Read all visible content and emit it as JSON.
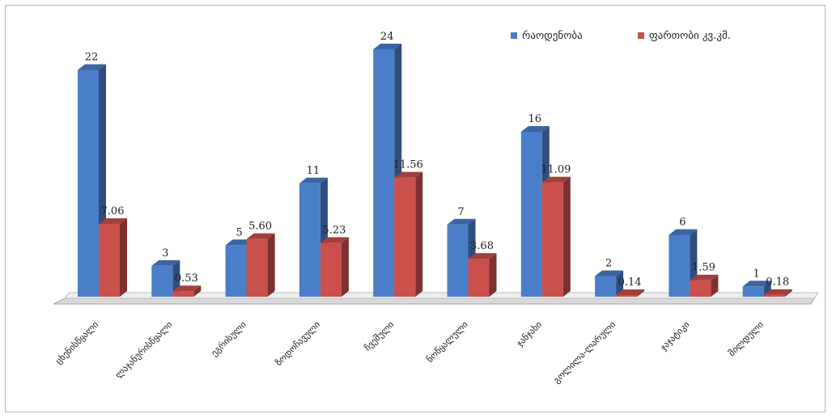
{
  "chart_data": {
    "type": "bar",
    "categories": [
      "ცხენისწყალი",
      "ლაჯანურისწყალი",
      "ეგრისული",
      "ზოდოჩავული",
      "ჩვეშული",
      "ნოწყალული",
      "ჯანჯახი",
      "გოლილა-ლარული",
      "ჯაჯატიკი",
      "შილდული"
    ],
    "series": [
      {
        "name": "რაოდენობა",
        "color": "#4a7ec9",
        "values": [
          22,
          3,
          5,
          11,
          24,
          7,
          16,
          2,
          6,
          1
        ],
        "labels": [
          "22",
          "3",
          "5",
          "11",
          "24",
          "7",
          "16",
          "2",
          "6",
          "1"
        ]
      },
      {
        "name": "ფართობი კვ.კმ.",
        "color": "#c9504b",
        "values": [
          7.06,
          0.53,
          5.6,
          5.23,
          11.56,
          3.68,
          11.09,
          0.14,
          1.59,
          0.18
        ],
        "labels": [
          "7.06",
          "0.53",
          "5.60",
          "5.23",
          "11.56",
          "3.68",
          "11.09",
          "0.14",
          "1.59",
          "0.18"
        ]
      }
    ],
    "ylim": [
      0,
      24
    ],
    "grid": false,
    "legend_position": "top-right",
    "title": "",
    "xlabel": "",
    "ylabel": ""
  }
}
